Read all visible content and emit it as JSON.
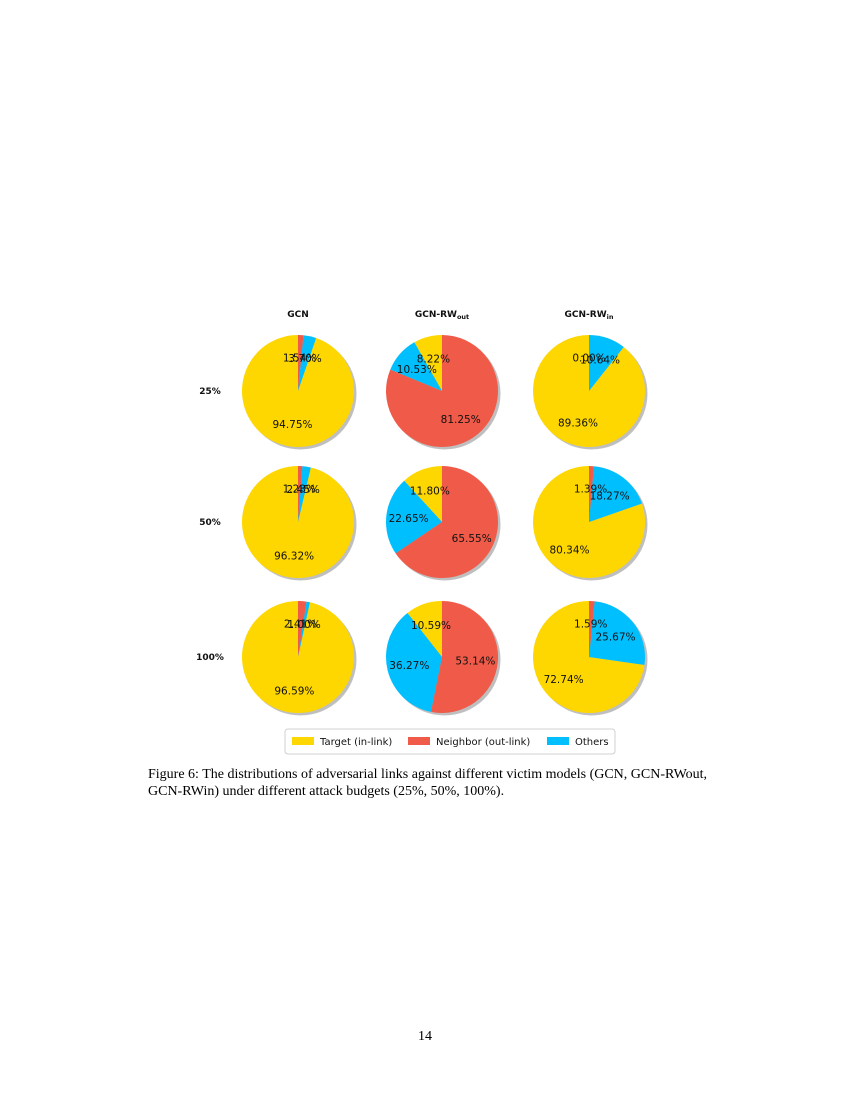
{
  "chart_data": {
    "type": "pie",
    "columns": [
      {
        "name": "GCN",
        "base": "GCN",
        "sub": ""
      },
      {
        "name": "GCN-RWout",
        "base": "GCN-RW",
        "sub": "out"
      },
      {
        "name": "GCN-RWin",
        "base": "GCN-RW",
        "sub": "in"
      }
    ],
    "rows": [
      "25%",
      "50%",
      "100%"
    ],
    "categories": [
      "Target (in-link)",
      "Neighbor (out-link)",
      "Others"
    ],
    "colors": [
      "#FFD700",
      "#F05A48",
      "#00BFFF"
    ],
    "pies": [
      {
        "row": "25%",
        "column": "GCN",
        "values": [
          94.75,
          1.54,
          3.7
        ],
        "labels": [
          "94.75%",
          "1.54%",
          "3.70%"
        ]
      },
      {
        "row": "25%",
        "column": "GCN-RWout",
        "values": [
          8.22,
          81.25,
          10.53
        ],
        "labels": [
          "8.22%",
          "81.25%",
          "10.53%"
        ]
      },
      {
        "row": "25%",
        "column": "GCN-RWin",
        "values": [
          89.36,
          0.0,
          10.64
        ],
        "labels": [
          "89.36%",
          "0.00%",
          "10.64%"
        ]
      },
      {
        "row": "50%",
        "column": "GCN",
        "values": [
          96.32,
          1.23,
          2.45
        ],
        "labels": [
          "96.32%",
          "1.23%",
          "2.45%"
        ]
      },
      {
        "row": "50%",
        "column": "GCN-RWout",
        "values": [
          11.8,
          65.55,
          22.65
        ],
        "labels": [
          "11.80%",
          "65.55%",
          "22.65%"
        ]
      },
      {
        "row": "50%",
        "column": "GCN-RWin",
        "values": [
          80.34,
          1.39,
          18.27
        ],
        "labels": [
          "80.34%",
          "1.39%",
          "18.27%"
        ]
      },
      {
        "row": "100%",
        "column": "GCN",
        "values": [
          96.59,
          2.41,
          1.0
        ],
        "labels": [
          "96.59%",
          "2.41%",
          "1.00%"
        ]
      },
      {
        "row": "100%",
        "column": "GCN-RWout",
        "values": [
          10.59,
          53.14,
          36.27
        ],
        "labels": [
          "10.59%",
          "53.14%",
          "36.27%"
        ]
      },
      {
        "row": "100%",
        "column": "GCN-RWin",
        "values": [
          72.74,
          1.59,
          25.67
        ],
        "labels": [
          "72.74%",
          "1.59%",
          "25.67%"
        ]
      }
    ],
    "legend": [
      "Target (in-link)",
      "Neighbor (out-link)",
      "Others"
    ],
    "legend_position": "bottom"
  },
  "caption": "Figure 6: The distributions of adversarial links against different victim models (GCN, GCN-RWout, GCN-RWin) under different attack budgets (25%, 50%, 100%).",
  "page_number": "14"
}
